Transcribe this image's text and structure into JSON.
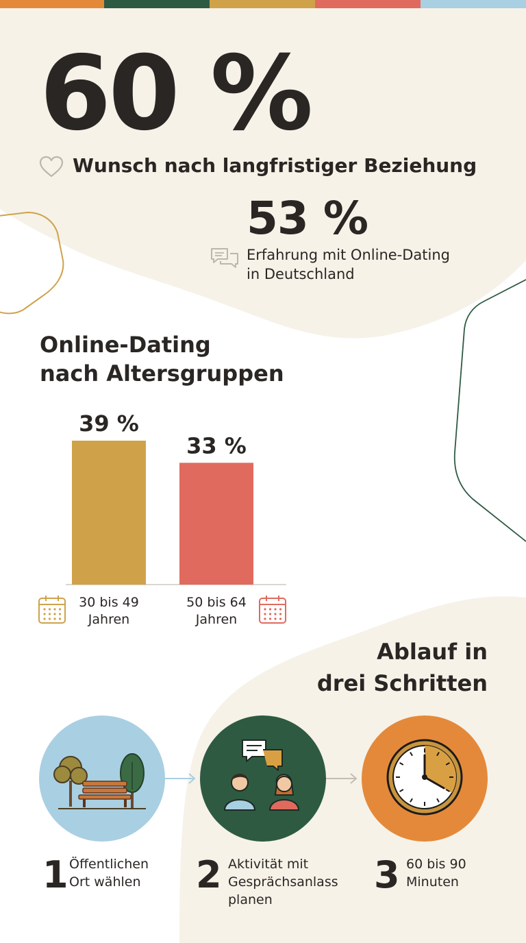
{
  "palette": {
    "orange": "#E4893A",
    "green": "#2E5A42",
    "mustard": "#CFA24A",
    "coral": "#E06A5E",
    "lightblue": "#A9CFE2",
    "cream": "#F6F2E8",
    "text": "#2A2624"
  },
  "hero": {
    "stat": "60 %",
    "label": "Wunsch nach langfristiger Beziehung",
    "icon": "heart-icon"
  },
  "secondary": {
    "stat": "53 %",
    "label_line1": "Erfahrung mit Online-Dating",
    "label_line2": "in Deutschland",
    "icon": "chat-bubbles-icon"
  },
  "chart_section": {
    "title_line1": "Online-Dating",
    "title_line2": "nach Altersgruppen"
  },
  "chart_data": {
    "type": "bar",
    "categories": [
      "30 bis 49 Jahren",
      "50 bis 64 Jahren"
    ],
    "category_lines": [
      [
        "30 bis 49",
        "Jahren"
      ],
      [
        "50 bis 64",
        "Jahren"
      ]
    ],
    "values": [
      39,
      33
    ],
    "value_labels": [
      "39 %",
      "33 %"
    ],
    "colors": [
      "#CFA24A",
      "#E06A5E"
    ],
    "unit": "%",
    "ylim": [
      0,
      39
    ],
    "grid": false,
    "legend": "none",
    "icons": [
      "calendar-icon",
      "calendar-icon"
    ]
  },
  "steps_section": {
    "title_line1": "Ablauf in",
    "title_line2": "drei Schritten",
    "steps": [
      {
        "number": "1",
        "lines": [
          "Öffentlichen",
          "Ort wählen"
        ],
        "icon": "park-bench-icon",
        "color": "#A9CFE2"
      },
      {
        "number": "2",
        "lines": [
          "Aktivität mit",
          "Gesprächsanlass",
          "planen"
        ],
        "icon": "conversation-people-icon",
        "color": "#2E5A42"
      },
      {
        "number": "3",
        "lines": [
          "60 bis 90",
          "Minuten"
        ],
        "icon": "clock-icon",
        "color": "#E4893A"
      }
    ]
  }
}
